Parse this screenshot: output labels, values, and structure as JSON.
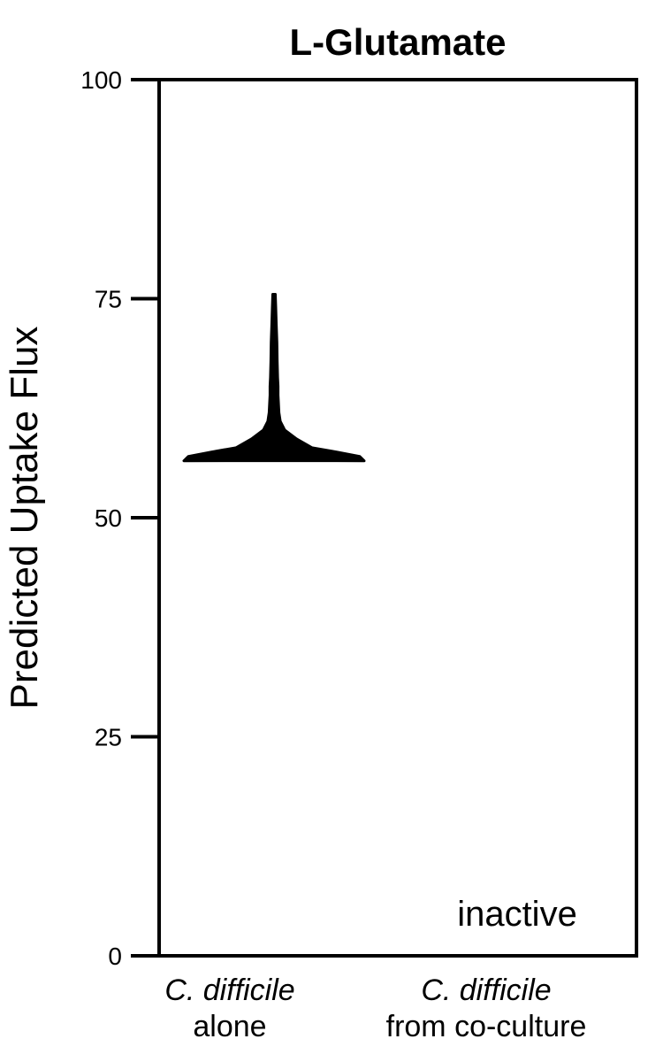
{
  "chart_data": {
    "type": "violin",
    "title": "L-Glutamate",
    "xlabel": "",
    "ylabel": "Predicted Uptake Flux",
    "ylim": [
      0,
      100
    ],
    "yticks": [
      0,
      25,
      50,
      75,
      100
    ],
    "ytick_labels": [
      "0",
      "25",
      "50",
      "75",
      "100"
    ],
    "categories": [
      {
        "line1": "C. difficile",
        "line2": "alone"
      },
      {
        "line1": "C. difficile",
        "line2": "from co-culture"
      }
    ],
    "series": [
      {
        "category_index": 0,
        "min": 56.5,
        "max": 75.5,
        "density": [
          [
            56.5,
            1.0
          ],
          [
            57.0,
            0.95
          ],
          [
            57.5,
            0.7
          ],
          [
            58.0,
            0.42
          ],
          [
            59.0,
            0.25
          ],
          [
            60.0,
            0.12
          ],
          [
            61.0,
            0.07
          ],
          [
            62.0,
            0.055
          ],
          [
            63.0,
            0.05
          ],
          [
            64.0,
            0.045
          ],
          [
            65.0,
            0.045
          ],
          [
            66.0,
            0.04
          ],
          [
            68.0,
            0.035
          ],
          [
            70.0,
            0.032
          ],
          [
            72.0,
            0.025
          ],
          [
            74.0,
            0.02
          ],
          [
            75.5,
            0.015
          ]
        ]
      }
    ],
    "annotations": [
      {
        "category_index": 1,
        "text": "inactive"
      }
    ],
    "grid": false,
    "color": "#000000"
  }
}
